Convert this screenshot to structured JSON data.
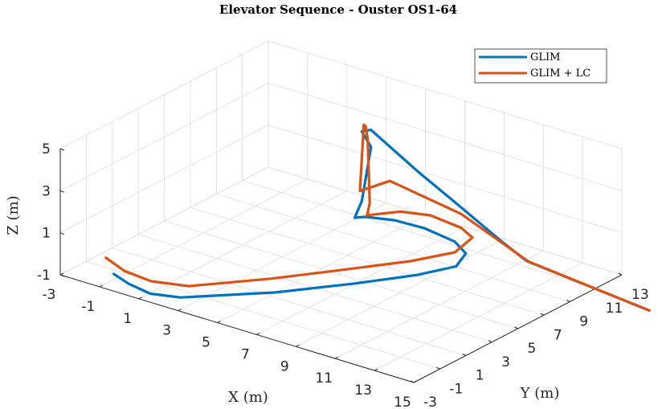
{
  "chart_data": {
    "type": "line",
    "title": "Elevator Sequence - Ouster OS1-64",
    "xlabel": "X (m)",
    "ylabel": "Y (m)",
    "zlabel": "Z (m)",
    "xlim": [
      -3,
      15
    ],
    "ylim": [
      -3,
      13
    ],
    "zlim": [
      -1,
      5
    ],
    "xticks": [
      "-3",
      "-1",
      "1",
      "3",
      "5",
      "7",
      "9",
      "11",
      "13",
      "15"
    ],
    "yticks": [
      "-3",
      "-1",
      "1",
      "3",
      "5",
      "7",
      "9",
      "11",
      "13"
    ],
    "zticks": [
      "-1",
      "1",
      "3",
      "5"
    ],
    "grid": true,
    "view": "3d",
    "legend_position": "top-right",
    "series": [
      {
        "name": "GLIM",
        "color": "#0072BD",
        "points": [
          [
            -1.6,
            -1.0,
            -1.2
          ],
          [
            -0.5,
            -1.5,
            -1.2
          ],
          [
            0.8,
            -1.8,
            -1.2
          ],
          [
            2.0,
            -1.3,
            -1.2
          ],
          [
            5.0,
            1.5,
            -1.0
          ],
          [
            7.5,
            3.8,
            -0.6
          ],
          [
            9.5,
            5.6,
            -0.2
          ],
          [
            10.6,
            6.9,
            0.1
          ],
          [
            10.5,
            7.8,
            0.4
          ],
          [
            9.8,
            8.0,
            0.7
          ],
          [
            8.4,
            7.8,
            1.0
          ],
          [
            7.2,
            7.3,
            1.2
          ],
          [
            6.2,
            6.6,
            1.3
          ],
          [
            5.9,
            6.2,
            1.3
          ],
          [
            6.0,
            6.6,
            2.0
          ],
          [
            6.2,
            7.0,
            4.5
          ],
          [
            5.6,
            7.2,
            5.0
          ],
          [
            5.4,
            8.2,
            4.7
          ],
          [
            7.0,
            9.5,
            2.7
          ],
          [
            8.3,
            10.3,
            1.4
          ],
          [
            10.8,
            10.0,
            0.4
          ],
          [
            12.0,
            10.2,
            -0.3
          ],
          [
            16.4,
            13.0,
            -2.3
          ]
        ]
      },
      {
        "name": "GLIM + LC",
        "color": "#D95319",
        "points": [
          [
            -2.2,
            -0.7,
            -0.7
          ],
          [
            -0.8,
            -1.4,
            -0.7
          ],
          [
            0.7,
            -1.6,
            -0.7
          ],
          [
            2.2,
            -1.0,
            -0.7
          ],
          [
            4.8,
            1.5,
            -0.4
          ],
          [
            7.2,
            3.8,
            0.0
          ],
          [
            9.2,
            5.5,
            0.4
          ],
          [
            10.6,
            6.8,
            0.8
          ],
          [
            10.9,
            7.7,
            1.3
          ],
          [
            10.2,
            7.9,
            1.5
          ],
          [
            8.7,
            7.8,
            1.7
          ],
          [
            7.5,
            7.3,
            1.7
          ],
          [
            6.6,
            6.7,
            1.5
          ],
          [
            6.4,
            6.4,
            1.5
          ],
          [
            6.4,
            6.6,
            2.0
          ],
          [
            6.3,
            6.6,
            5.0
          ],
          [
            6.2,
            6.6,
            5.6
          ],
          [
            5.9,
            6.9,
            5.5
          ],
          [
            6.1,
            6.3,
            2.6
          ],
          [
            6.7,
            7.7,
            2.8
          ],
          [
            9.2,
            9.4,
            1.4
          ],
          [
            12.1,
            10.2,
            -0.3
          ],
          [
            16.4,
            13.0,
            -2.3
          ]
        ]
      }
    ]
  }
}
